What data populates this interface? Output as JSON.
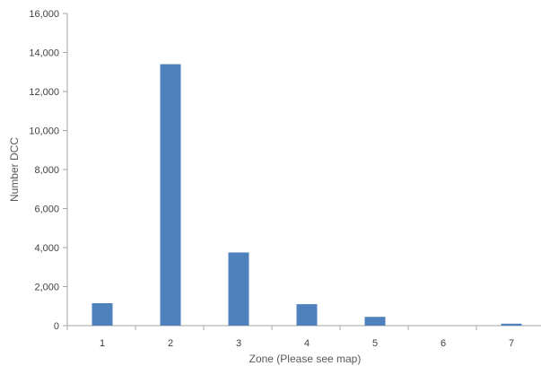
{
  "chart_data": {
    "type": "bar",
    "categories": [
      "1",
      "2",
      "3",
      "4",
      "5",
      "6",
      "7"
    ],
    "values": [
      1150,
      13400,
      3750,
      1100,
      450,
      0,
      100
    ],
    "xlabel": "Zone (Please see map)",
    "ylabel": "Number DCC",
    "ylim": [
      0,
      16000
    ],
    "yticks": [
      0,
      2000,
      4000,
      6000,
      8000,
      10000,
      12000,
      14000,
      16000
    ],
    "ytick_labels": [
      "0",
      "2,000",
      "4,000",
      "6,000",
      "8,000",
      "10,000",
      "12,000",
      "14,000",
      "16,000"
    ],
    "grid": false,
    "legend": "none",
    "bar_color": "#4f81bd",
    "axis_color": "#a6a6a6"
  }
}
